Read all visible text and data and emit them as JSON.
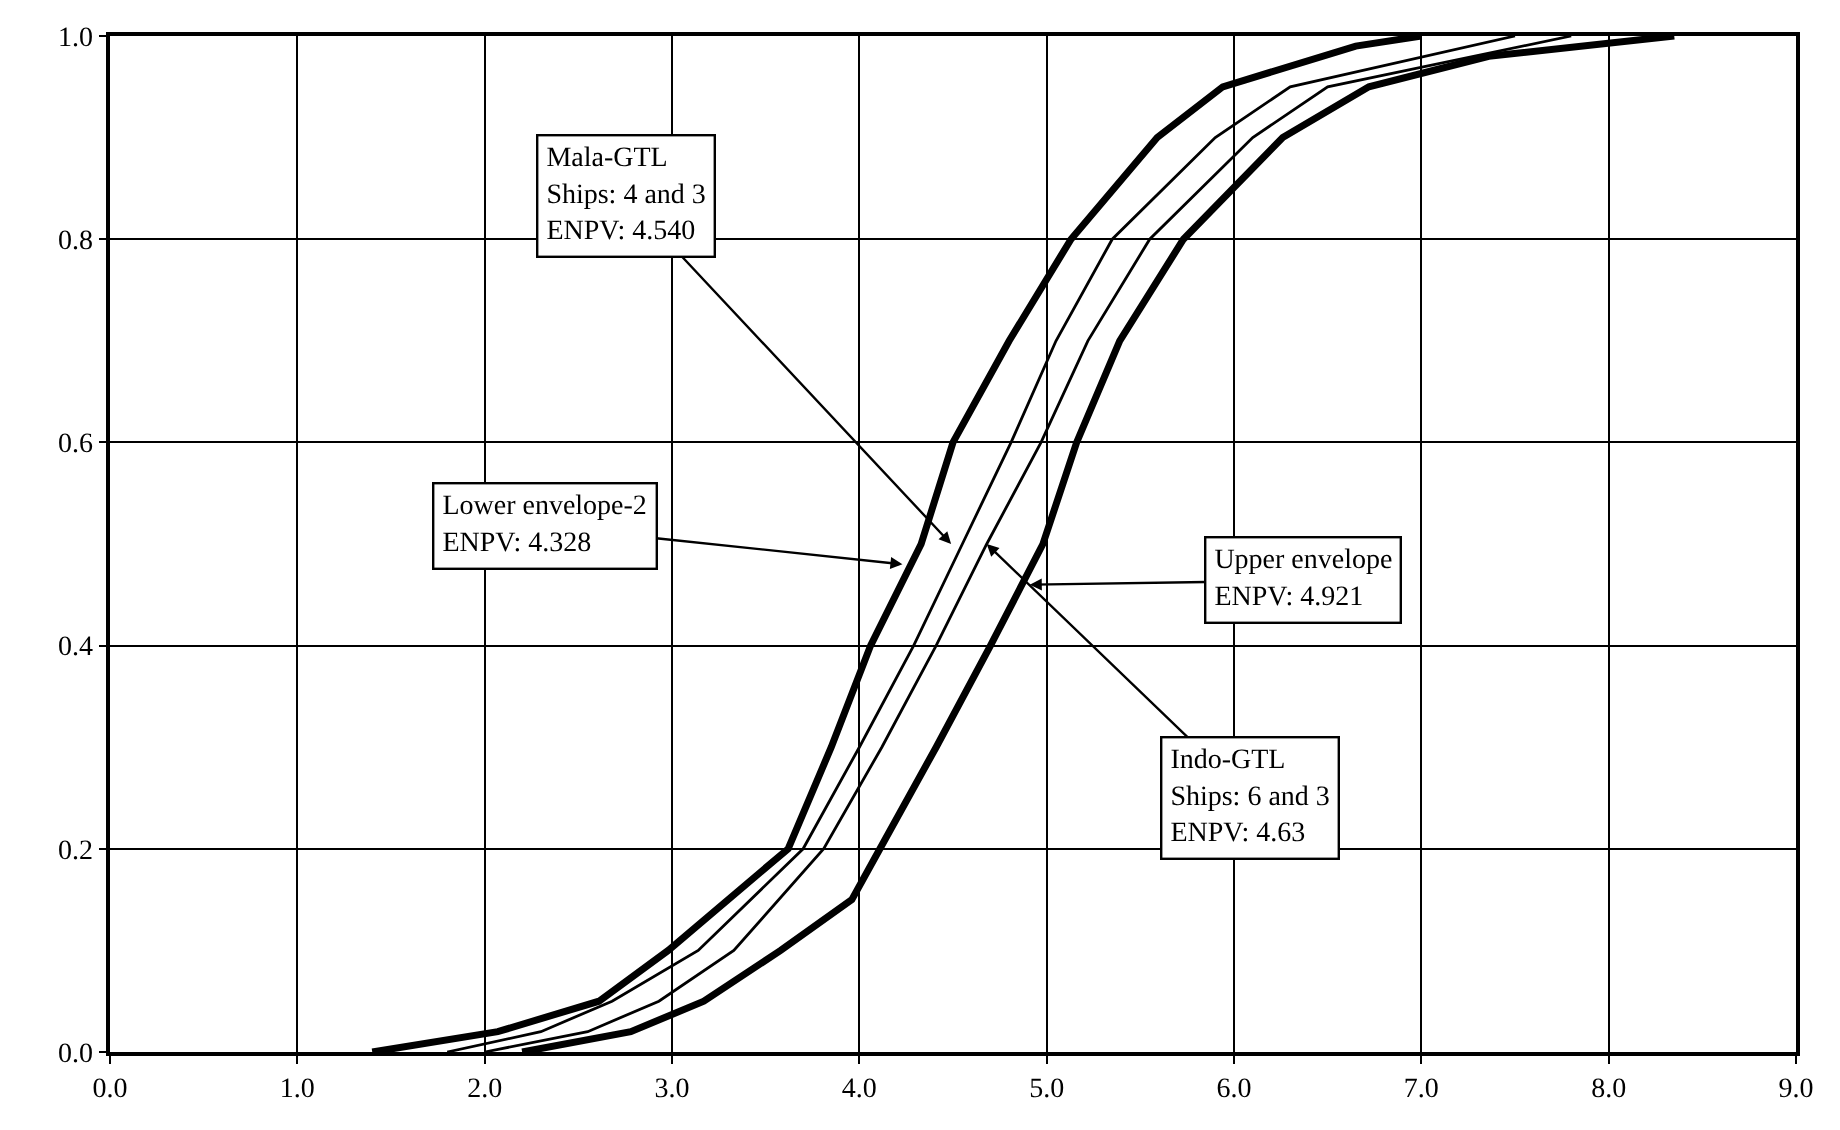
{
  "chart_data": {
    "type": "line",
    "xlim": [
      0,
      9
    ],
    "ylim": [
      0,
      1
    ],
    "xticks": [
      {
        "value": 0,
        "label": "0.0"
      },
      {
        "value": 1,
        "label": "1.0"
      },
      {
        "value": 2,
        "label": "2.0"
      },
      {
        "value": 3,
        "label": "3.0"
      },
      {
        "value": 4,
        "label": "4.0"
      },
      {
        "value": 5,
        "label": "5.0"
      },
      {
        "value": 6,
        "label": "6.0"
      },
      {
        "value": 7,
        "label": "7.0"
      },
      {
        "value": 8,
        "label": "8.0"
      },
      {
        "value": 9,
        "label": "9.0"
      }
    ],
    "yticks": [
      {
        "value": 0,
        "label": "0.0"
      },
      {
        "value": 0.2,
        "label": "0.2"
      },
      {
        "value": 0.4,
        "label": "0.4"
      },
      {
        "value": 0.6,
        "label": "0.6"
      },
      {
        "value": 0.8,
        "label": "0.8"
      },
      {
        "value": 1,
        "label": "1.0"
      }
    ],
    "grid": true,
    "marker": "none",
    "line_style": "solid",
    "series": [
      {
        "color": "#000000",
        "x": [
          1.4,
          2.07,
          2.61,
          2.98,
          3.62,
          3.85,
          4.06,
          4.33,
          4.5,
          4.8,
          5.13,
          5.59,
          5.94,
          6.65,
          7.0
        ],
        "values": [
          0,
          0.02,
          0.05,
          0.1,
          0.2,
          0.3,
          0.4,
          0.5,
          0.6,
          0.7,
          0.8,
          0.9,
          0.95,
          0.99,
          1.0
        ]
      },
      {
        "color": "#000000",
        "x": [
          2.2,
          2.78,
          3.17,
          3.58,
          3.96,
          4.11,
          4.41,
          4.7,
          4.98,
          5.16,
          5.39,
          5.73,
          6.26,
          6.72,
          7.36,
          8.35
        ],
        "values": [
          0,
          0.02,
          0.05,
          0.1,
          0.15,
          0.2,
          0.3,
          0.4,
          0.5,
          0.6,
          0.7,
          0.8,
          0.9,
          0.95,
          0.98,
          1.0
        ]
      },
      {
        "color": "#000000",
        "x": [
          1.8,
          2.3,
          2.68,
          3.14,
          3.7,
          4.0,
          4.29,
          4.55,
          4.81,
          5.05,
          5.35,
          5.9,
          6.3,
          7.5
        ],
        "values": [
          0,
          0.02,
          0.05,
          0.1,
          0.2,
          0.3,
          0.4,
          0.5,
          0.6,
          0.7,
          0.8,
          0.9,
          0.95,
          1.0
        ]
      },
      {
        "color": "#000000",
        "x": [
          2.0,
          2.55,
          2.93,
          3.33,
          3.81,
          4.12,
          4.41,
          4.68,
          4.97,
          5.22,
          5.55,
          6.1,
          6.5,
          7.8
        ],
        "values": [
          0,
          0.02,
          0.05,
          0.1,
          0.2,
          0.3,
          0.4,
          0.5,
          0.6,
          0.7,
          0.8,
          0.9,
          0.95,
          1.0
        ]
      }
    ],
    "annotations": [
      {
        "text": "Mala-GTL\nShips: 4 and 3\nENPV: 4.540",
        "x": 4.49,
        "y": 0.5
      },
      {
        "text": "Lower envelope-2\nENPV: 4.328",
        "x": 4.23,
        "y": 0.48
      },
      {
        "text": "Upper envelope\nENPV: 4.921",
        "x": 4.91,
        "y": 0.46
      },
      {
        "text": "Indo-GTL\nShips: 6 and 3\nENPV: 4.63",
        "x": 4.68,
        "y": 0.5
      }
    ]
  }
}
